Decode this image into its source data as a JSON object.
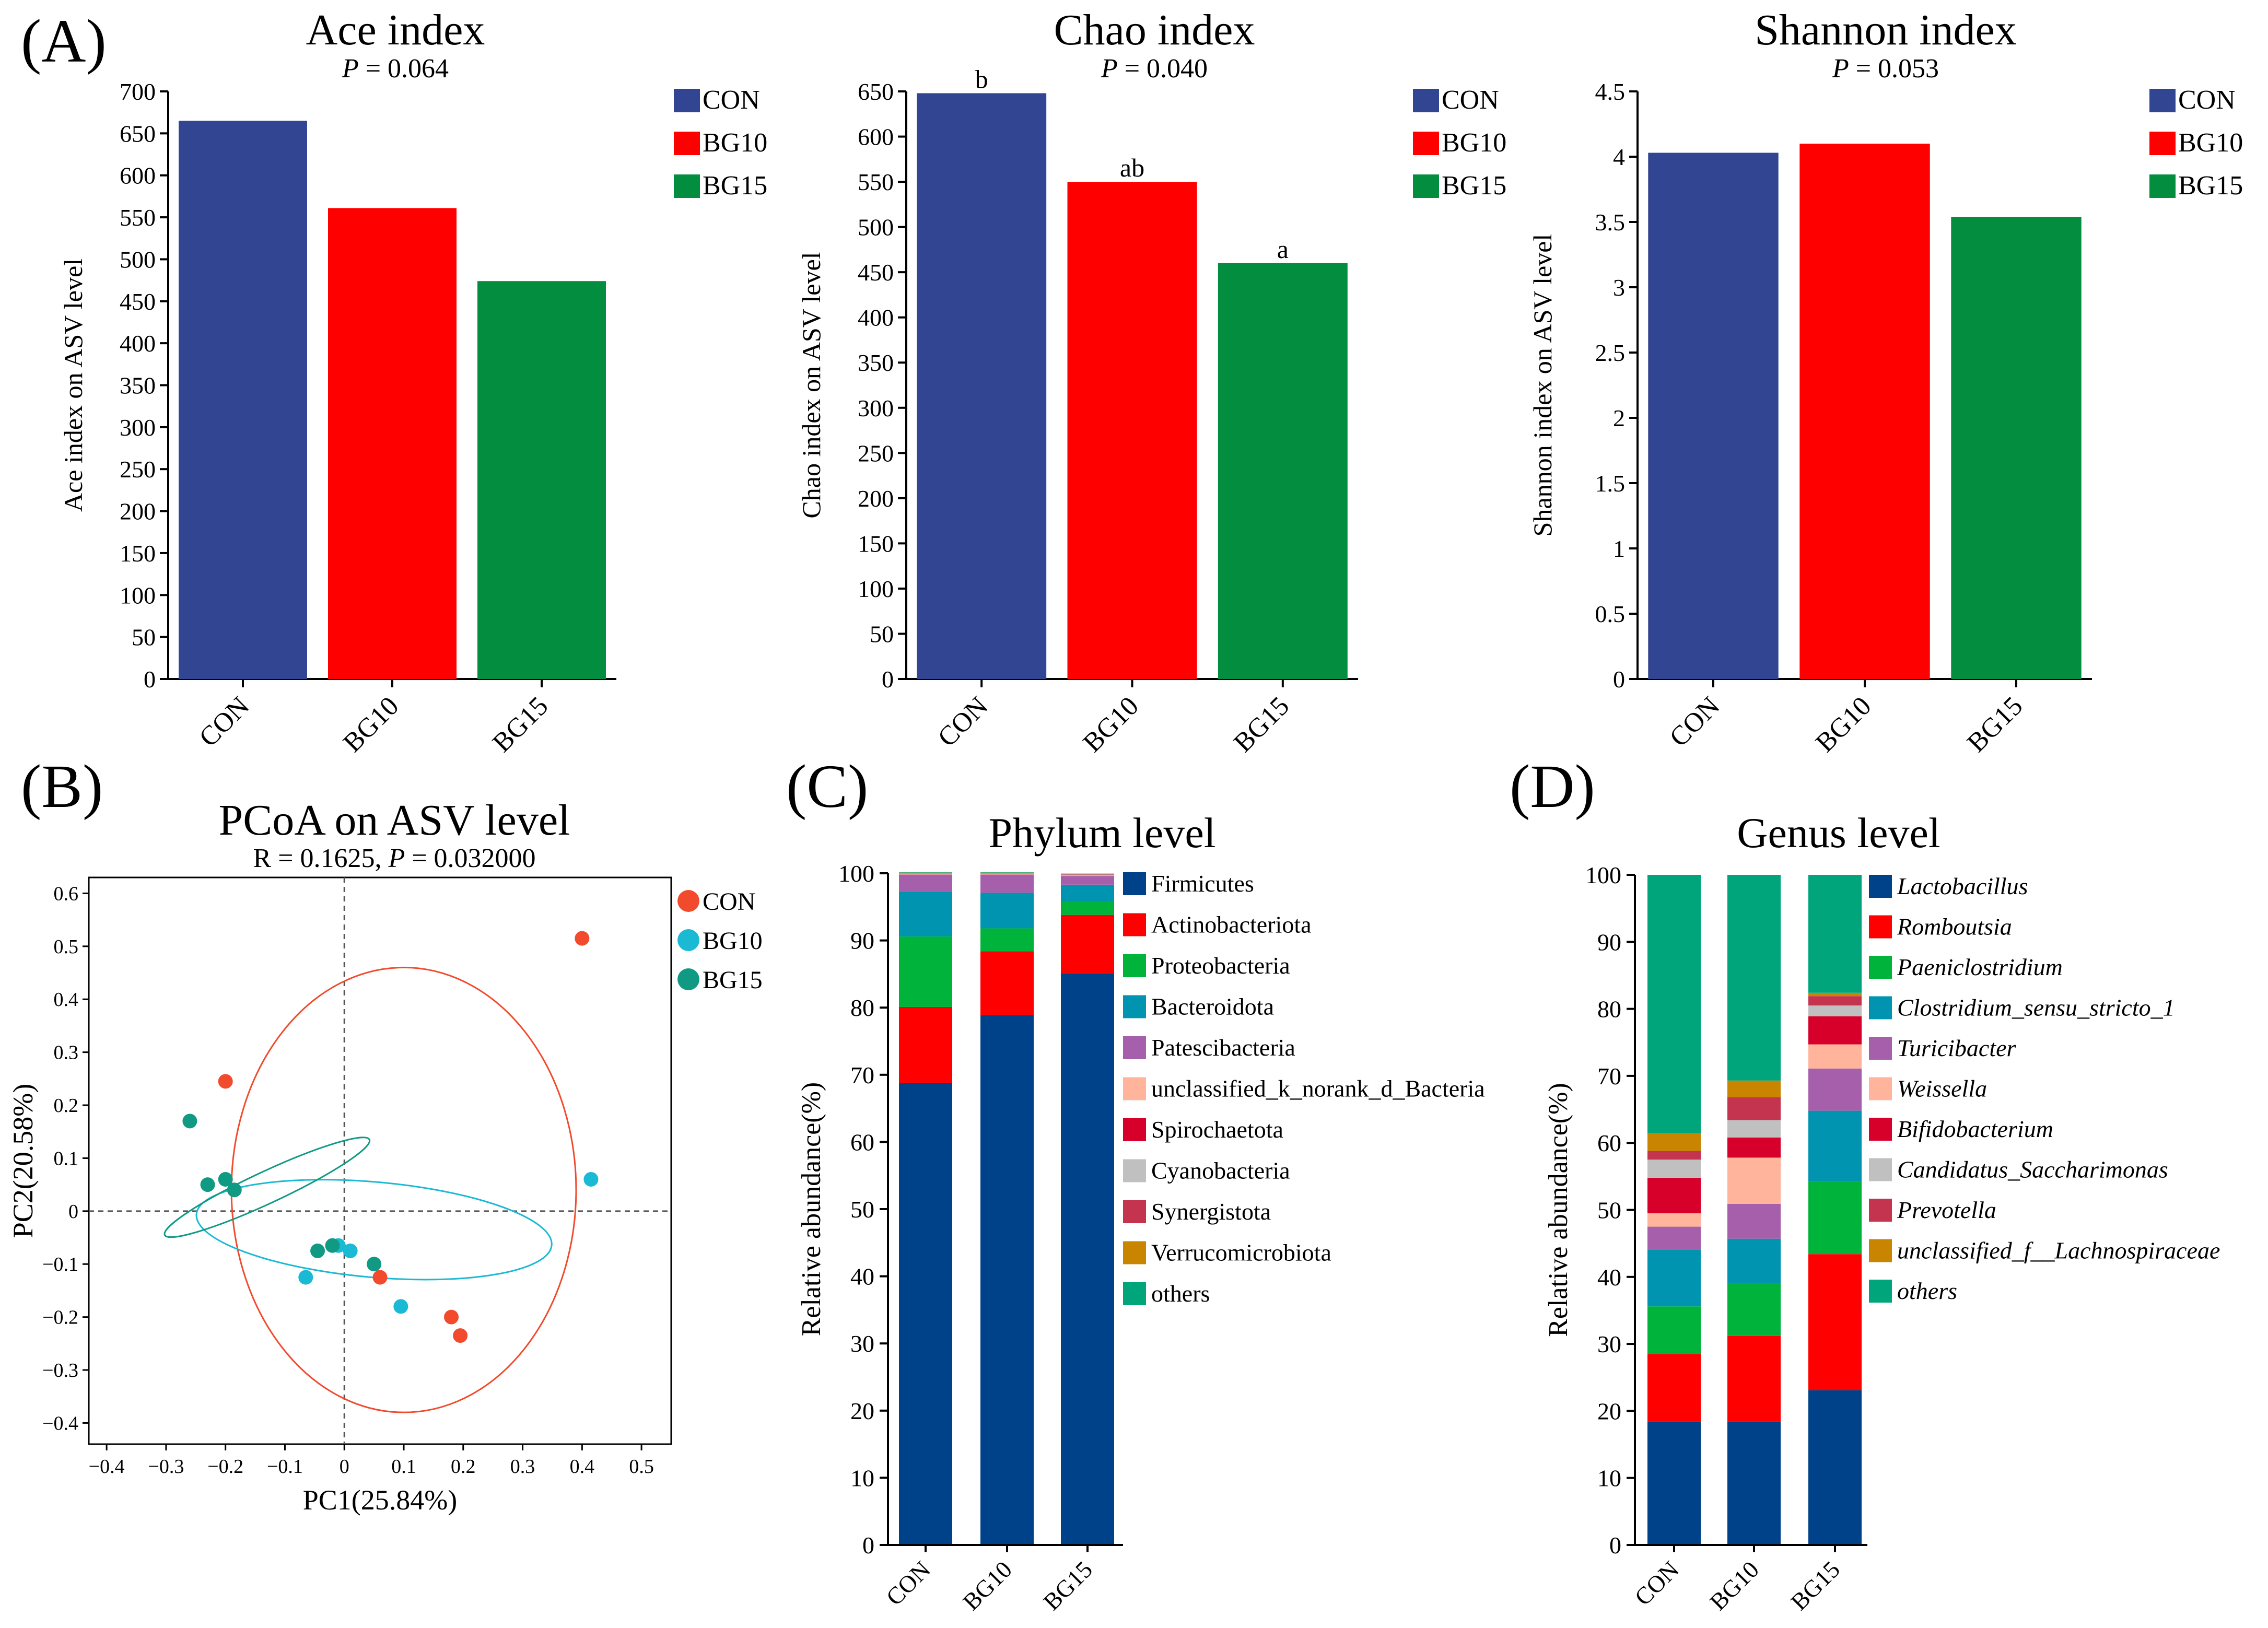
{
  "panel_labels": {
    "A": "(A)",
    "B": "(B)",
    "C": "(C)",
    "D": "(D)"
  },
  "colors": {
    "CON": "#324592",
    "BG10": "#ff0000",
    "BG15": "#028d3f",
    "pcoa_CON": "#f24a2c",
    "pcoa_BG10": "#1ab9d4",
    "pcoa_BG15": "#109a84"
  },
  "chart_data": [
    {
      "id": "ace",
      "type": "bar",
      "title": "Ace index",
      "p_prefix": "P",
      "p_text": " = 0.064",
      "ylabel": "Ace index on ASV level",
      "categories": [
        "CON",
        "BG10",
        "BG15"
      ],
      "values": [
        665,
        561,
        474
      ],
      "letters": [
        "",
        "",
        ""
      ],
      "ylim": [
        0,
        700
      ],
      "ytick_values": [
        0,
        50,
        100,
        150,
        200,
        250,
        300,
        350,
        400,
        450,
        500,
        550,
        600,
        650,
        700
      ],
      "ytick_labels": [
        "0",
        "50",
        "100",
        "150",
        "200",
        "250",
        "300",
        "350",
        "400",
        "450",
        "500",
        "550",
        "600",
        "650",
        "700"
      ],
      "legend": [
        "CON",
        "BG10",
        "BG15"
      ]
    },
    {
      "id": "chao",
      "type": "bar",
      "title": "Chao index",
      "p_prefix": "P",
      "p_text": " = 0.040",
      "ylabel": "Chao index on ASV level",
      "categories": [
        "CON",
        "BG10",
        "BG15"
      ],
      "values": [
        648,
        550,
        460
      ],
      "letters": [
        "b",
        "ab",
        "a"
      ],
      "ylim": [
        0,
        650
      ],
      "ytick_values": [
        0,
        50,
        100,
        150,
        200,
        250,
        300,
        350,
        400,
        450,
        500,
        550,
        600,
        650
      ],
      "ytick_labels": [
        "0",
        "50",
        "100",
        "150",
        "200",
        "250",
        "300",
        "350",
        "400",
        "450",
        "500",
        "550",
        "600",
        "650"
      ],
      "legend": [
        "CON",
        "BG10",
        "BG15"
      ]
    },
    {
      "id": "shannon",
      "type": "bar",
      "title": "Shannon index",
      "p_prefix": "P",
      "p_text": " = 0.053",
      "ylabel": "Shannon index on ASV level",
      "categories": [
        "CON",
        "BG10",
        "BG15"
      ],
      "values": [
        4.03,
        4.1,
        3.54
      ],
      "letters": [
        "",
        "",
        ""
      ],
      "ylim": [
        0,
        4.5
      ],
      "ytick_values": [
        0,
        0.5,
        1,
        1.5,
        2,
        2.5,
        3,
        3.5,
        4,
        4.5
      ],
      "ytick_labels": [
        "0",
        "0.5",
        "1",
        "1.5",
        "2",
        "2.5",
        "3",
        "3.5",
        "4",
        "4.5"
      ],
      "legend": [
        "CON",
        "BG10",
        "BG15"
      ]
    },
    {
      "id": "pcoa",
      "type": "scatter",
      "title": "PCoA on ASV level",
      "subtitle_r": "R = 0.1625, ",
      "subtitle_p_prefix": "P",
      "subtitle_p": " = 0.032000",
      "xlabel": "PC1(25.84%)",
      "ylabel": "PC2(20.58%)",
      "xlim": [
        -0.43,
        0.55
      ],
      "ylim": [
        -0.44,
        0.63
      ],
      "xtick_values": [
        -0.4,
        -0.3,
        -0.2,
        -0.1,
        0,
        0.1,
        0.2,
        0.3,
        0.4,
        0.5
      ],
      "xtick_labels": [
        "−0.4",
        "−0.3",
        "−0.2",
        "−0.1",
        "0",
        "0.1",
        "0.2",
        "0.3",
        "0.4",
        "0.5"
      ],
      "ytick_values": [
        -0.4,
        -0.3,
        -0.2,
        -0.1,
        0,
        0.1,
        0.2,
        0.3,
        0.4,
        0.5,
        0.6
      ],
      "ytick_labels": [
        "−0.4",
        "−0.3",
        "−0.2",
        "−0.1",
        "0",
        "0.1",
        "0.2",
        "0.3",
        "0.4",
        "0.5",
        "0.6"
      ],
      "series": [
        {
          "name": "CON",
          "points": [
            [
              -0.2,
              0.245
            ],
            [
              0.4,
              0.515
            ],
            [
              0.06,
              -0.125
            ],
            [
              0.18,
              -0.2
            ],
            [
              0.195,
              -0.235
            ]
          ],
          "ellipse": {
            "cx": 0.1,
            "cy": 0.04,
            "rx": 0.29,
            "ry": 0.42,
            "angle": 0
          }
        },
        {
          "name": "BG10",
          "points": [
            [
              -0.065,
              -0.125
            ],
            [
              -0.01,
              -0.065
            ],
            [
              0.01,
              -0.075
            ],
            [
              0.095,
              -0.18
            ],
            [
              0.415,
              0.06
            ]
          ],
          "ellipse": {
            "cx": 0.05,
            "cy": -0.035,
            "rx": 0.3,
            "ry": 0.09,
            "angle": 5
          }
        },
        {
          "name": "BG15",
          "points": [
            [
              -0.26,
              0.17
            ],
            [
              -0.23,
              0.05
            ],
            [
              -0.2,
              0.06
            ],
            [
              -0.185,
              0.04
            ],
            [
              -0.045,
              -0.075
            ],
            [
              -0.02,
              -0.065
            ],
            [
              0.05,
              -0.1
            ]
          ],
          "ellipse": {
            "cx": -0.13,
            "cy": 0.045,
            "rx": 0.19,
            "ry": 0.03,
            "angle": -25
          }
        }
      ],
      "legend": [
        "CON",
        "BG10",
        "BG15"
      ]
    },
    {
      "id": "phylum",
      "type": "stacked_bar",
      "title": "Phylum level",
      "ylabel": "Relative abundance(%)",
      "categories": [
        "CON",
        "BG10",
        "BG15"
      ],
      "ylim": [
        0,
        100
      ],
      "ytick_values": [
        0,
        10,
        20,
        30,
        40,
        50,
        60,
        70,
        80,
        90,
        100
      ],
      "ytick_labels": [
        "0",
        "10",
        "20",
        "30",
        "40",
        "50",
        "60",
        "70",
        "80",
        "90",
        "100"
      ],
      "italic_legend": false,
      "series": [
        {
          "name": "Firmicutes",
          "color": "#004289",
          "values": [
            68.8,
            78.9,
            85.1
          ]
        },
        {
          "name": "Actinobacteriota",
          "color": "#ff0000",
          "values": [
            11.3,
            9.5,
            8.7
          ]
        },
        {
          "name": "Proteobacteria",
          "color": "#00b33a",
          "values": [
            10.5,
            3.4,
            2.0
          ]
        },
        {
          "name": "Bacteroidota",
          "color": "#0094b0",
          "values": [
            6.7,
            5.3,
            2.5
          ]
        },
        {
          "name": "Patescibacteria",
          "color": "#a65faa",
          "values": [
            2.5,
            2.7,
            1.3
          ]
        },
        {
          "name": "unclassified_k_norank_d_Bacteria",
          "color": "#ffb49b",
          "values": [
            0.1,
            0.1,
            0.1
          ]
        },
        {
          "name": "Spirochaetota",
          "color": "#d7002a",
          "values": [
            0.05,
            0.05,
            0.05
          ]
        },
        {
          "name": "Cyanobacteria",
          "color": "#c0c0c0",
          "values": [
            0.05,
            0.05,
            0.05
          ]
        },
        {
          "name": "Synergistota",
          "color": "#c4344f",
          "values": [
            0.05,
            0.05,
            0.05
          ]
        },
        {
          "name": "Verrucomicrobiota",
          "color": "#c98500",
          "values": [
            0.05,
            0.05,
            0.05
          ]
        },
        {
          "name": "others",
          "color": "#00a57c",
          "values": [
            0.05,
            0.05,
            0.05
          ]
        }
      ]
    },
    {
      "id": "genus",
      "type": "stacked_bar",
      "title": "Genus level",
      "ylabel": "Relative abundance(%)",
      "categories": [
        "CON",
        "BG10",
        "BG15"
      ],
      "ylim": [
        0,
        100
      ],
      "ytick_values": [
        0,
        10,
        20,
        30,
        40,
        50,
        60,
        70,
        80,
        90,
        100
      ],
      "ytick_labels": [
        "0",
        "10",
        "20",
        "30",
        "40",
        "50",
        "60",
        "70",
        "80",
        "90",
        "100"
      ],
      "italic_legend": true,
      "series": [
        {
          "name": "Lactobacillus",
          "color": "#004289",
          "values": [
            18.4,
            18.4,
            23.1
          ]
        },
        {
          "name": "Romboutsia",
          "color": "#ff0000",
          "values": [
            10.1,
            12.8,
            20.3
          ]
        },
        {
          "name": "Paeniclostridium",
          "color": "#00b33a",
          "values": [
            7.1,
            7.9,
            10.9
          ]
        },
        {
          "name": "Clostridium_sensu_stricto_1",
          "color": "#0094b0",
          "values": [
            8.5,
            6.6,
            10.5
          ]
        },
        {
          "name": "Turicibacter",
          "color": "#a65faa",
          "values": [
            3.4,
            5.2,
            6.3
          ]
        },
        {
          "name": "Weissella",
          "color": "#ffb49b",
          "values": [
            2.0,
            6.9,
            3.6
          ]
        },
        {
          "name": "Bifidobacterium",
          "color": "#d7002a",
          "values": [
            5.3,
            3.0,
            4.2
          ]
        },
        {
          "name": "Candidatus_Saccharimonas",
          "color": "#c0c0c0",
          "values": [
            2.7,
            2.6,
            1.6
          ]
        },
        {
          "name": "Prevotella",
          "color": "#c4344f",
          "values": [
            1.3,
            3.4,
            1.4
          ]
        },
        {
          "name": "unclassified_f__Lachnospiraceae",
          "color": "#c98500",
          "values": [
            2.6,
            2.5,
            0.5
          ]
        },
        {
          "name": "others",
          "color": "#00a57c",
          "values": [
            38.6,
            30.7,
            17.6
          ]
        }
      ]
    }
  ]
}
